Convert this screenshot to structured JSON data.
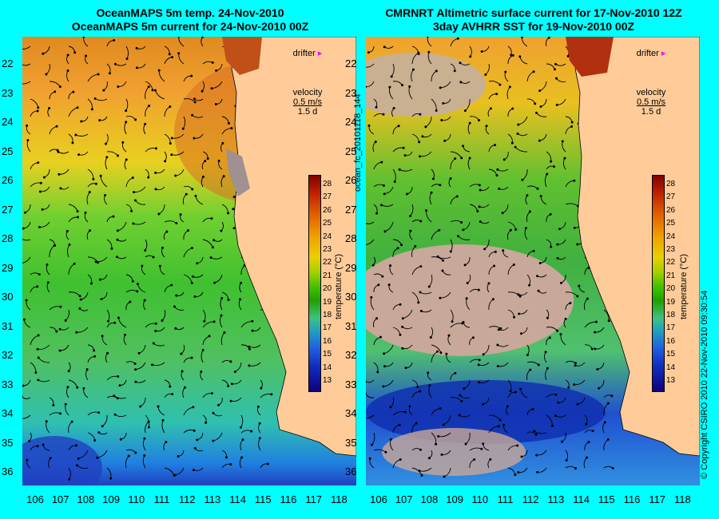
{
  "left": {
    "title_line1": "OceanMAPS 5m temp. 24-Nov-2010",
    "title_line2": "OceanMAPS 5m current for 24-Nov-2010 00Z"
  },
  "right": {
    "title_line1": "CMRNRT Altimetric surface current for 17-Nov-2010 12Z",
    "title_line2": "3day AVHRR SST for 19-Nov-2010 00Z"
  },
  "legend": {
    "drifter_label": "drifter",
    "velocity_label": "velocity",
    "velocity_value": "0.5 m/s",
    "duration_value": "1.5 d"
  },
  "colorbar": {
    "ticks": [
      "28",
      "27",
      "26",
      "25",
      "24",
      "23",
      "22",
      "21",
      "20",
      "19",
      "18",
      "17",
      "16",
      "15",
      "14",
      "13"
    ],
    "unit_label": "temperature (°C)"
  },
  "y_axis": {
    "ticks": [
      "22",
      "23",
      "24",
      "25",
      "26",
      "27",
      "28",
      "29",
      "30",
      "31",
      "32",
      "33",
      "34",
      "35",
      "36"
    ]
  },
  "x_axis": {
    "ticks": [
      "106",
      "107",
      "108",
      "109",
      "110",
      "111",
      "112",
      "113",
      "114",
      "115",
      "116",
      "117",
      "118"
    ]
  },
  "side_text": {
    "product_id": "ocean_fc_20101118_144",
    "copyright": "© Copyright CSIRO 2010   22-Nov-2010 09:30:54"
  },
  "colors": {
    "background": "#00ffff",
    "land": "#ffcc99",
    "drifter_marker": "#ff00ff"
  }
}
